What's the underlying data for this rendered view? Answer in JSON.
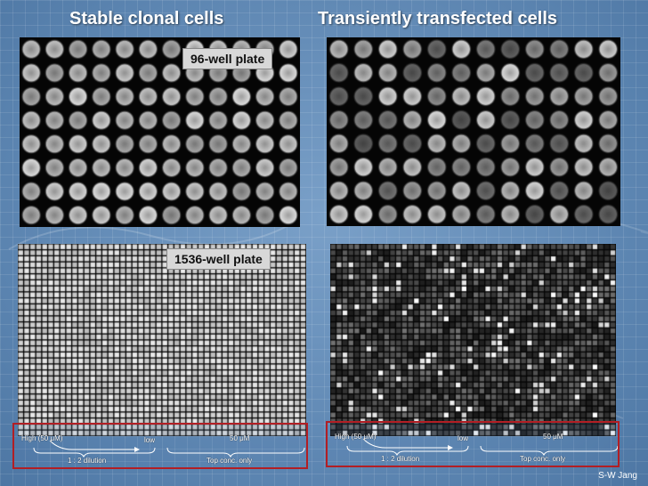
{
  "titles": {
    "left": "Stable clonal cells",
    "right": "Transiently transfected cells"
  },
  "plates": {
    "label_96": "96-well plate",
    "label_1536": "1536-well plate"
  },
  "legend": {
    "high": "High (50 μM)",
    "low": "low",
    "top_conc": "50 μM",
    "dilution": "1 : 2 dilution",
    "top_only": "Top conc. only"
  },
  "credit": "S-W Jang",
  "colors": {
    "background": "#5e87b3",
    "frame": "#b21e24",
    "plate": "#050505"
  }
}
